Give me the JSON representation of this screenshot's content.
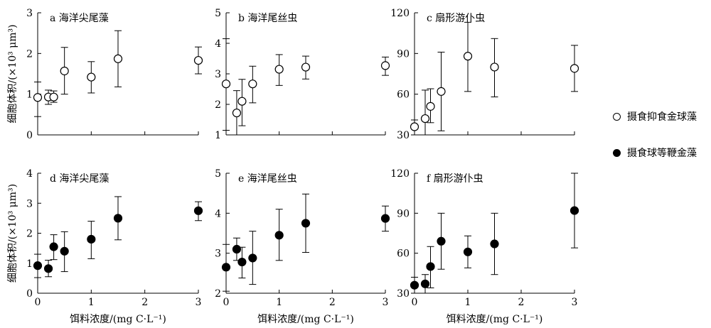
{
  "chart_data": [
    {
      "type": "scatter",
      "panel_label": "a 海洋尖尾藻",
      "ylabel_html": "细胞体积/(×10³ μm³)",
      "xlabel": "",
      "xlim": [
        0,
        3
      ],
      "ylim": [
        0,
        3
      ],
      "xticks": [
        0,
        1,
        2,
        3
      ],
      "xtick_labels": [
        "",
        "",
        "",
        ""
      ],
      "yticks": [
        0,
        1,
        2,
        3
      ],
      "ytick_labels": [
        "0",
        "1",
        "2",
        "3"
      ],
      "series": [
        {
          "marker": "open-circle",
          "x": [
            0,
            0.2,
            0.3,
            0.5,
            1,
            1.5,
            3
          ],
          "y": [
            0.92,
            0.93,
            0.93,
            1.57,
            1.42,
            1.87,
            1.83
          ],
          "err_low": [
            0.45,
            0.75,
            0.8,
            1.0,
            1.03,
            1.18,
            1.5
          ],
          "err_high": [
            1.3,
            1.1,
            1.08,
            2.15,
            1.8,
            2.56,
            2.16
          ]
        }
      ]
    },
    {
      "type": "scatter",
      "panel_label": "b 海洋尾丝虫",
      "xlabel": "",
      "xlim": [
        0,
        3
      ],
      "ylim": [
        1,
        5
      ],
      "xticks": [
        0,
        1,
        2,
        3
      ],
      "xtick_labels": [
        "",
        "",
        "",
        ""
      ],
      "yticks": [
        1,
        2,
        3,
        4,
        5
      ],
      "ytick_labels": [
        "1",
        "2",
        "3",
        "4",
        "5"
      ],
      "series": [
        {
          "marker": "open-circle",
          "x": [
            0,
            0.2,
            0.3,
            0.5,
            1,
            1.5,
            3
          ],
          "y": [
            2.67,
            1.72,
            2.1,
            2.67,
            3.15,
            3.22,
            3.27
          ],
          "err_low": [
            1.15,
            0.95,
            1.3,
            2.05,
            2.62,
            2.83,
            2.95
          ],
          "err_high": [
            4.15,
            2.45,
            2.82,
            3.25,
            3.63,
            3.58,
            3.55
          ]
        }
      ]
    },
    {
      "type": "scatter",
      "panel_label": "c 扇形游仆虫",
      "xlabel": "",
      "xlim": [
        0,
        3
      ],
      "ylim": [
        30,
        120
      ],
      "xticks": [
        0,
        1,
        2,
        3
      ],
      "xtick_labels": [
        "",
        "",
        "",
        ""
      ],
      "yticks": [
        30,
        60,
        90,
        120
      ],
      "ytick_labels": [
        "30",
        "60",
        "90",
        "120"
      ],
      "series": [
        {
          "marker": "open-circle",
          "x": [
            0,
            0.2,
            0.3,
            0.5,
            1,
            1.5,
            3
          ],
          "y": [
            36,
            42,
            51,
            62,
            88,
            80,
            79
          ],
          "err_low": [
            30,
            30,
            39,
            33,
            62,
            58,
            62
          ],
          "err_high": [
            41,
            63,
            64,
            91,
            113,
            101,
            96
          ]
        }
      ]
    },
    {
      "type": "scatter",
      "panel_label": "d 海洋尖尾藻",
      "ylabel_html": "细胞体积/(×10³ μm³)",
      "xlabel": "饵料浓度/(mg C·L⁻¹)",
      "xlim": [
        0,
        3
      ],
      "ylim": [
        0,
        4
      ],
      "xticks": [
        0,
        1,
        2,
        3
      ],
      "xtick_labels": [
        "0",
        "1",
        "2",
        "3"
      ],
      "yticks": [
        0,
        1,
        2,
        3,
        4
      ],
      "ytick_labels": [
        "0",
        "1",
        "2",
        "3",
        "4"
      ],
      "series": [
        {
          "marker": "filled-circle",
          "x": [
            0,
            0.2,
            0.3,
            0.5,
            1,
            1.5,
            3
          ],
          "y": [
            0.92,
            0.82,
            1.55,
            1.4,
            1.8,
            2.5,
            2.75
          ],
          "err_low": [
            0.52,
            0.55,
            1.12,
            0.72,
            1.15,
            1.78,
            2.42
          ],
          "err_high": [
            1.3,
            1.1,
            1.95,
            2.05,
            2.4,
            3.22,
            3.05
          ]
        }
      ]
    },
    {
      "type": "scatter",
      "panel_label": "e 海洋尾丝虫",
      "xlabel": "饵料浓度/(mg C·L⁻¹)",
      "xlim": [
        0,
        3
      ],
      "ylim": [
        2,
        5
      ],
      "xticks": [
        0,
        1,
        2,
        3
      ],
      "xtick_labels": [
        "0",
        "1",
        "2",
        "3"
      ],
      "yticks": [
        2,
        3,
        4,
        5
      ],
      "ytick_labels": [
        "2",
        "3",
        "4",
        "5"
      ],
      "series": [
        {
          "marker": "filled-circle",
          "x": [
            0,
            0.2,
            0.3,
            0.5,
            1,
            1.5,
            3
          ],
          "y": [
            2.65,
            3.1,
            2.78,
            2.88,
            3.45,
            3.75,
            3.87
          ],
          "err_low": [
            2.05,
            2.82,
            2.38,
            2.22,
            2.82,
            3.02,
            3.55
          ],
          "err_high": [
            3.22,
            3.38,
            3.15,
            3.55,
            4.1,
            4.48,
            4.18
          ]
        }
      ]
    },
    {
      "type": "scatter",
      "panel_label": "f 扇形游仆虫",
      "xlabel": "饵料浓度/(mg C·L⁻¹)",
      "xlim": [
        0,
        3
      ],
      "ylim": [
        30,
        120
      ],
      "xticks": [
        0,
        1,
        2,
        3
      ],
      "xtick_labels": [
        "0",
        "1",
        "2",
        "3"
      ],
      "yticks": [
        30,
        60,
        90,
        120
      ],
      "ytick_labels": [
        "30",
        "60",
        "90",
        "120"
      ],
      "series": [
        {
          "marker": "filled-circle",
          "x": [
            0,
            0.2,
            0.3,
            0.5,
            1,
            1.5,
            3
          ],
          "y": [
            36,
            37,
            50,
            69,
            61,
            67,
            92
          ],
          "err_low": [
            30,
            30,
            34,
            48,
            49,
            44,
            64
          ],
          "err_high": [
            42,
            44,
            65,
            90,
            73,
            90,
            120
          ]
        }
      ]
    }
  ],
  "legend": [
    {
      "marker": "open-circle",
      "label": "摄食抑食金球藻"
    },
    {
      "marker": "filled-circle",
      "label": "摄食球等鞭金藻"
    }
  ],
  "colors": {
    "stroke": "#000000",
    "open_fill": "#ffffff",
    "filled_fill": "#000000"
  }
}
